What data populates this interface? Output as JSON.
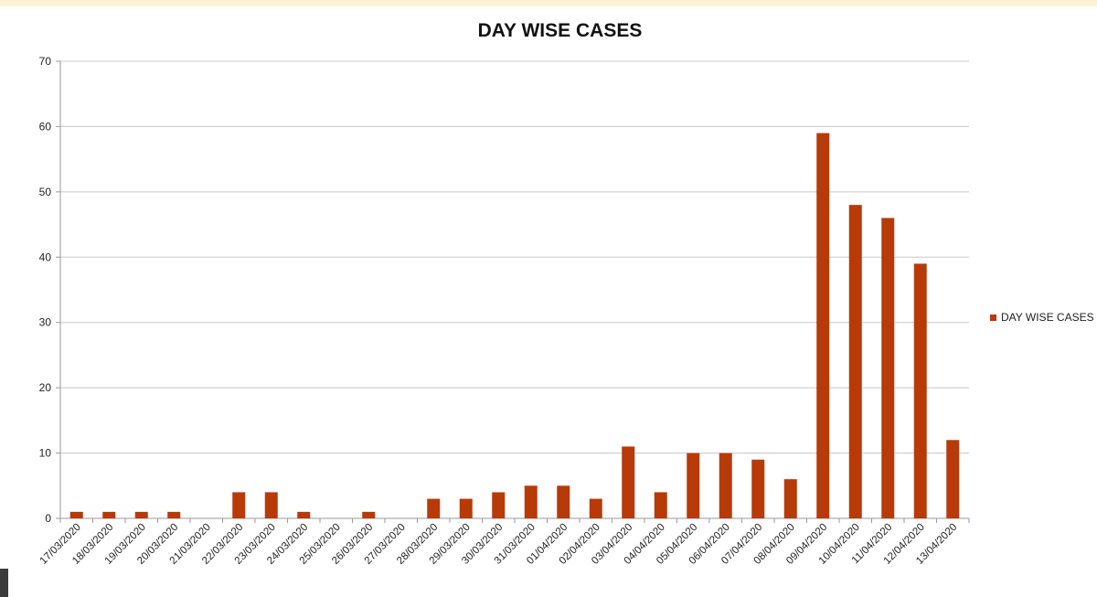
{
  "chart_data": {
    "type": "bar",
    "title": "DAY WISE CASES",
    "xlabel": "",
    "ylabel": "",
    "ylim": [
      0,
      70
    ],
    "yticks": [
      0,
      10,
      20,
      30,
      40,
      50,
      60,
      70
    ],
    "grid": true,
    "legend_position": "right",
    "categories": [
      "17/03/2020",
      "18/03/2020",
      "19/03/2020",
      "20/03/2020",
      "21/03/2020",
      "22/03/2020",
      "23/03/2020",
      "24/03/2020",
      "25/03/2020",
      "26/03/2020",
      "27/03/2020",
      "28/03/2020",
      "29/03/2020",
      "30/03/2020",
      "31/03/2020",
      "01/04/2020",
      "02/04/2020",
      "03/04/2020",
      "04/04/2020",
      "05/04/2020",
      "06/04/2020",
      "07/04/2020",
      "08/04/2020",
      "09/04/2020",
      "10/04/2020",
      "11/04/2020",
      "12/04/2020",
      "13/04/2020"
    ],
    "series": [
      {
        "name": "DAY WISE CASES",
        "color": "#b83a08",
        "values": [
          1,
          1,
          1,
          1,
          0,
          4,
          4,
          1,
          0,
          1,
          0,
          3,
          3,
          4,
          5,
          5,
          3,
          11,
          4,
          10,
          10,
          9,
          6,
          59,
          48,
          46,
          39,
          12
        ]
      }
    ]
  }
}
